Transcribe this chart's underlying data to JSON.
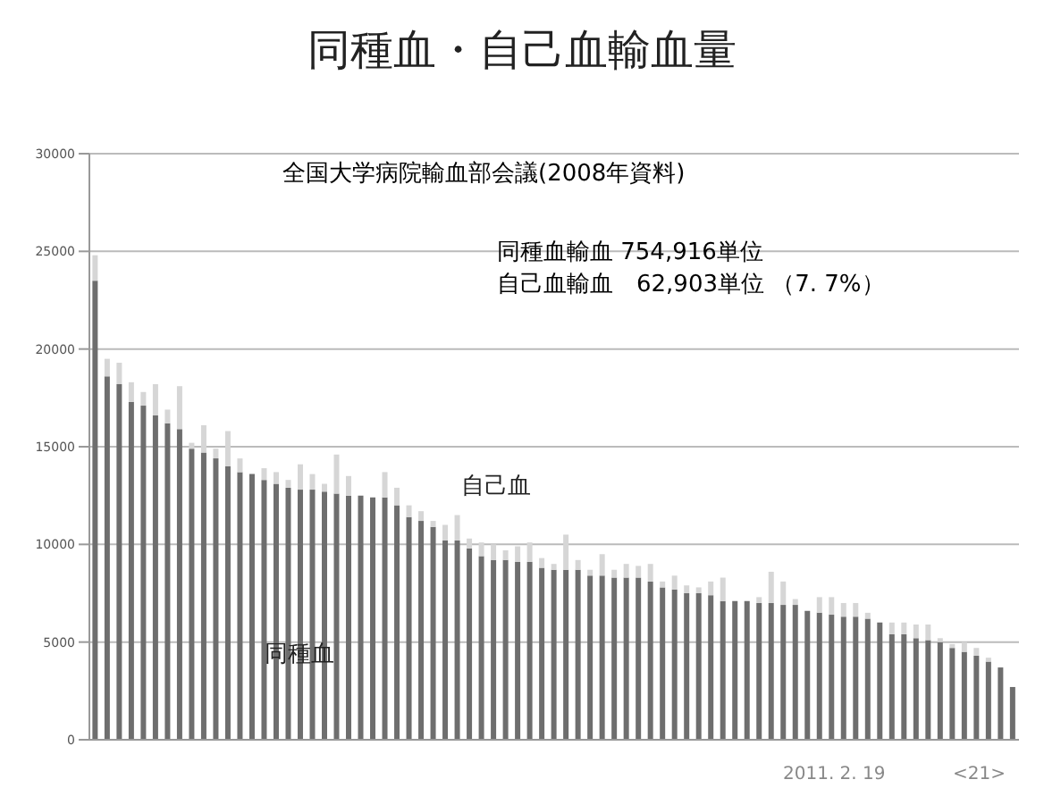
{
  "chart_data": {
    "type": "bar",
    "title": "同種血・自己血輸血量",
    "stacked": true,
    "categories": [
      null,
      null,
      null,
      null,
      null,
      null,
      null,
      null,
      null,
      null,
      null,
      null,
      null,
      null,
      null,
      null,
      null,
      null,
      null,
      null,
      null,
      null,
      null,
      null,
      null,
      null,
      null,
      null,
      null,
      null,
      null,
      null,
      null,
      null,
      null,
      null,
      null,
      null,
      null,
      null,
      null,
      null,
      null,
      null,
      null,
      null,
      null,
      null,
      null,
      null,
      null,
      null,
      null,
      null,
      null,
      null,
      null,
      null,
      null,
      null,
      null,
      null,
      null,
      null,
      null,
      null,
      null,
      null,
      null,
      null,
      null,
      null,
      null,
      null,
      null,
      null,
      null
    ],
    "series": [
      {
        "name": "同種血",
        "color": "#6e6e6e",
        "values": [
          23500,
          18600,
          18200,
          17300,
          17100,
          16600,
          16200,
          15900,
          14900,
          14700,
          14400,
          14000,
          13700,
          13600,
          13300,
          13100,
          12900,
          12800,
          12800,
          12700,
          12600,
          12500,
          12500,
          12400,
          12400,
          12000,
          11400,
          11200,
          10900,
          10200,
          10200,
          9800,
          9400,
          9200,
          9200,
          9100,
          9100,
          8800,
          8700,
          8700,
          8700,
          8400,
          8400,
          8300,
          8300,
          8300,
          8100,
          7800,
          7700,
          7500,
          7500,
          7400,
          7100,
          7100,
          7100,
          7000,
          7000,
          6900,
          6900,
          6600,
          6500,
          6400,
          6300,
          6300,
          6200,
          6000,
          5400,
          5400,
          5200,
          5100,
          5000,
          4700,
          4500,
          4300,
          4000,
          3700,
          2700
        ]
      },
      {
        "name": "自己血",
        "color": "#d6d6d6",
        "values": [
          1300,
          900,
          1100,
          1000,
          700,
          1600,
          700,
          2200,
          300,
          1400,
          500,
          1800,
          700,
          0,
          600,
          600,
          400,
          1300,
          800,
          400,
          2000,
          1000,
          0,
          0,
          1300,
          900,
          600,
          500,
          300,
          800,
          1300,
          500,
          700,
          800,
          500,
          800,
          1000,
          500,
          300,
          1800,
          500,
          300,
          1100,
          400,
          700,
          600,
          900,
          300,
          700,
          400,
          300,
          700,
          1200,
          0,
          0,
          300,
          1600,
          1200,
          300,
          0,
          800,
          900,
          700,
          700,
          300,
          0,
          600,
          600,
          700,
          800,
          200,
          200,
          500,
          400,
          200,
          0,
          0
        ]
      }
    ],
    "ylim": [
      0,
      30000
    ],
    "yticks": [
      0,
      5000,
      10000,
      15000,
      20000,
      25000,
      30000
    ],
    "grid": "y",
    "tick_labels": "y",
    "annotations": [
      "全国大学病院輸血部会議(2008年資料)",
      "同種血輸血 754,916単位",
      "自己血輸血　62,903単位 （7. 7%）",
      "2011. 2. 19",
      "<21>"
    ]
  }
}
